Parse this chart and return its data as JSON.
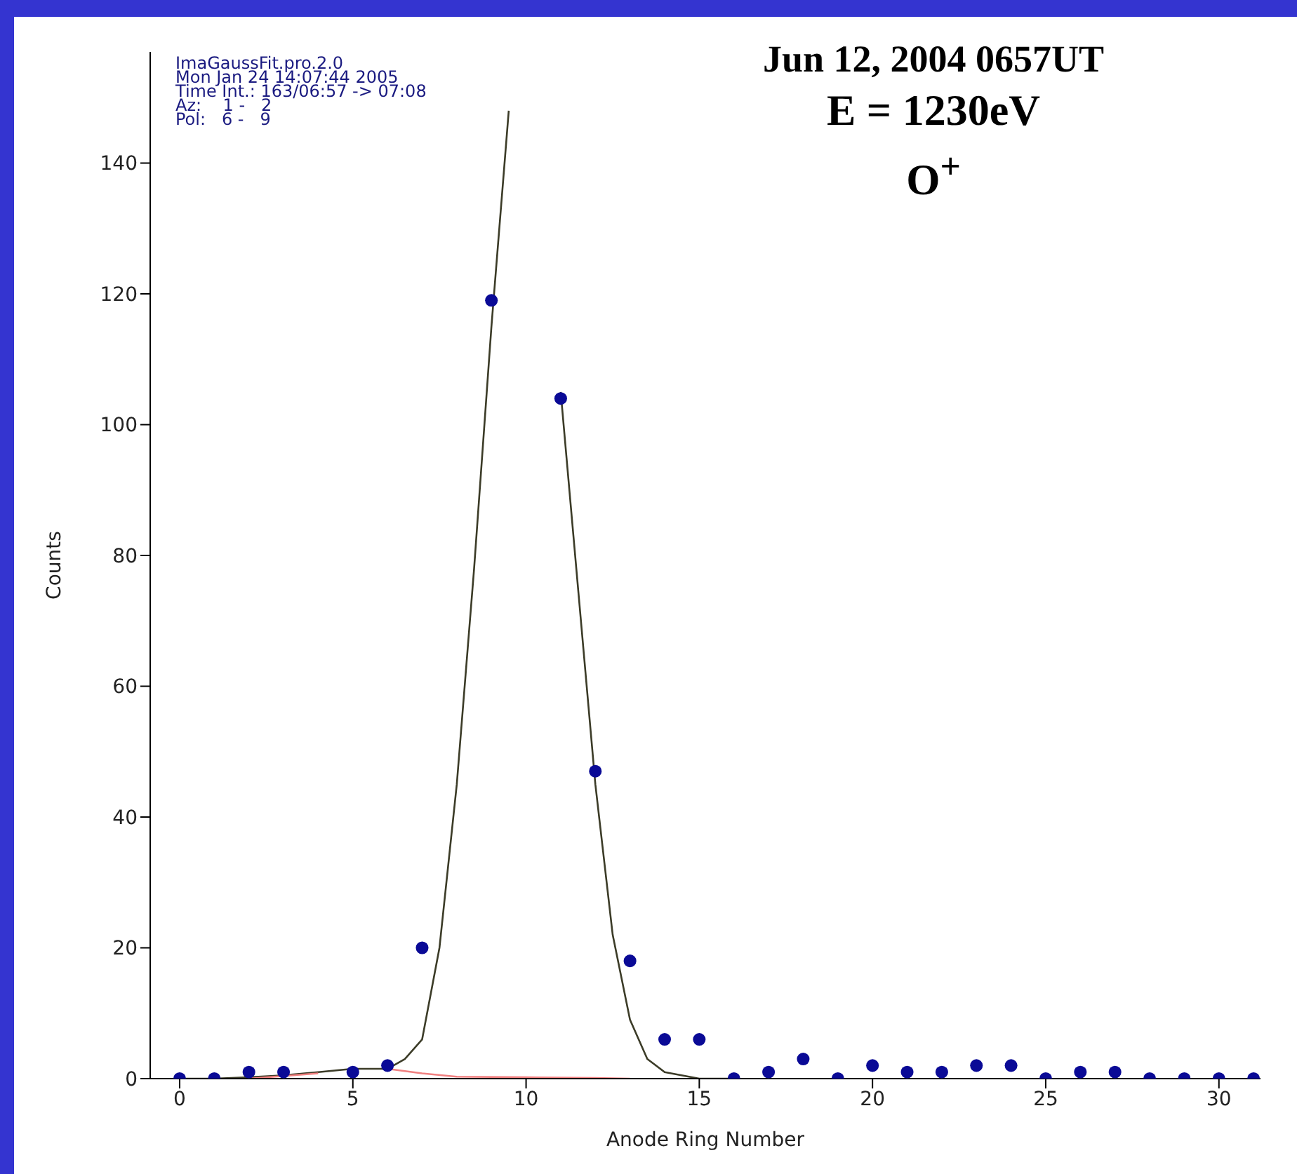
{
  "chart_data": {
    "type": "scatter",
    "title": "Jun 12, 2004 0657UT",
    "subtitle": "E = 1230eV",
    "xlabel": "Anode Ring Number",
    "ylabel": "Counts",
    "annotations": [
      "ImaGaussFit.pro.2.0",
      "Mon Jan 24 14:07:44 2005",
      "Time Int.: 163/06:57 -> 07:08",
      "Az:    1 -   2",
      "Pol:   6 -   9",
      "O$^{+}$"
    ],
    "x": [
      0,
      1,
      2,
      3,
      4,
      5,
      6,
      7,
      8,
      9,
      10,
      11,
      12,
      13,
      14,
      15,
      16,
      17,
      18,
      19,
      20,
      21,
      22,
      23,
      24,
      25,
      26,
      27,
      28,
      29,
      30,
      31
    ],
    "series": [
      {
        "marker": "circle",
        "color": "#0a0a96",
        "values": [
          0,
          0,
          1,
          1,
          null,
          1,
          2,
          20,
          null,
          119,
          null,
          104,
          47,
          18,
          6,
          6,
          0,
          1,
          3,
          0,
          2,
          1,
          1,
          2,
          2,
          0,
          1,
          1,
          0,
          0,
          0,
          0
        ]
      },
      {
        "type": "line",
        "marker": "none",
        "color": "#3c3c28",
        "x": [
          0,
          1,
          2,
          3,
          4,
          5,
          5.5,
          6,
          6.5,
          7,
          7.5,
          8,
          8.5,
          9,
          9.5,
          9.6,
          10,
          10.3,
          11,
          11.5,
          12,
          12.5,
          13,
          13.5,
          14,
          15,
          16
        ],
        "values": [
          0,
          0,
          0.2,
          0.5,
          1,
          1.5,
          1.5,
          1.5,
          3,
          6,
          20,
          45,
          78,
          115,
          148,
          null,
          null,
          null,
          105,
          75,
          45,
          22,
          9,
          3,
          1,
          0,
          0
        ]
      },
      {
        "type": "line",
        "marker": "none",
        "color": "#f08080",
        "x": [
          2,
          4,
          5,
          6,
          7,
          8,
          10,
          12,
          13
        ],
        "values": [
          0,
          0.8,
          null,
          1.5,
          0.8,
          0.3,
          0.2,
          0.1,
          0
        ]
      }
    ],
    "xlim": [
      -0.85,
      31.2
    ],
    "ylim": [
      0,
      157
    ],
    "xticks": [
      0,
      5,
      10,
      15,
      20,
      25,
      30
    ],
    "yticks": [
      0,
      20,
      40,
      60,
      80,
      100,
      120,
      140
    ],
    "grid": false,
    "line_style": "solid"
  }
}
